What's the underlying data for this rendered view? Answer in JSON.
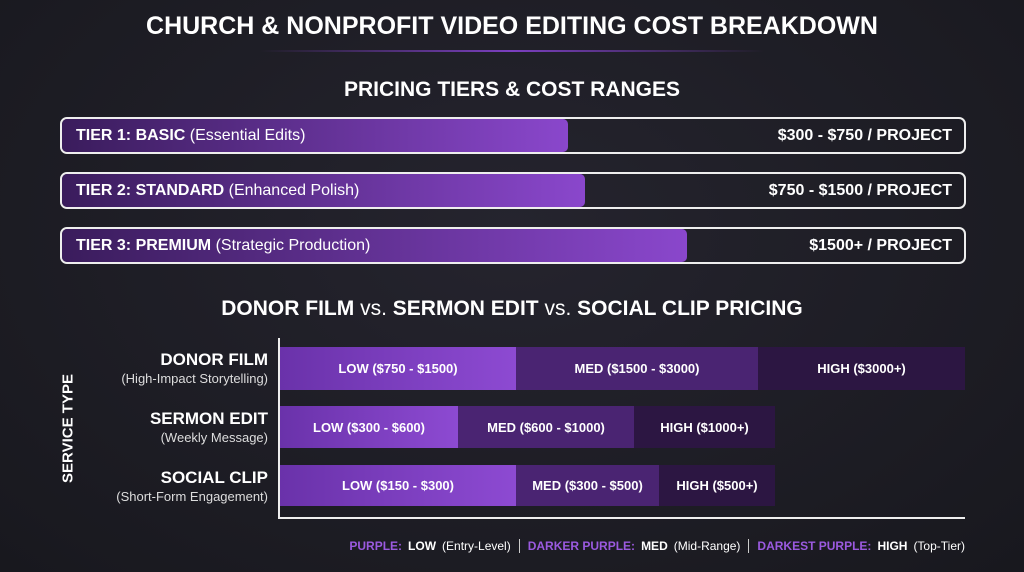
{
  "title": "CHURCH & NONPROFIT VIDEO EDITING COST BREAKDOWN",
  "tiers_section": {
    "title": "PRICING TIERS & COST RANGES",
    "tiers": [
      {
        "name": "TIER 1: BASIC",
        "note": "(Essential Edits)",
        "price": "$300 - $750 / PROJECT"
      },
      {
        "name": "TIER 2: STANDARD",
        "note": "(Enhanced Polish)",
        "price": "$750 - $1500 / PROJECT"
      },
      {
        "name": "TIER 3: PREMIUM",
        "note": "(Strategic Production)",
        "price": "$1500+ / PROJECT"
      }
    ]
  },
  "comparison": {
    "title_parts": [
      "DONOR FILM",
      "vs.",
      "SERMON EDIT",
      "vs.",
      "SOCIAL CLIP PRICING"
    ],
    "axis_label": "SERVICE TYPE",
    "services": [
      {
        "name": "DONOR FILM",
        "sub": "(High-Impact Storytelling)",
        "segments": [
          "LOW ($750 - $1500)",
          "MED ($1500 - $3000)",
          "HIGH ($3000+)"
        ]
      },
      {
        "name": "SERMON EDIT",
        "sub": "(Weekly Message)",
        "segments": [
          "LOW ($300 - $600)",
          "MED ($600 - $1000)",
          "HIGH ($1000+)"
        ]
      },
      {
        "name": "SOCIAL CLIP",
        "sub": "(Short-Form Engagement)",
        "segments": [
          "LOW ($150 - $300)",
          "MED ($300 - $500)",
          "HIGH ($500+)"
        ]
      }
    ],
    "legend": [
      {
        "key": "PURPLE:",
        "level": "LOW",
        "note": "(Entry-Level)"
      },
      {
        "key": "DARKER PURPLE:",
        "level": "MED",
        "note": "(Mid-Range)"
      },
      {
        "key": "DARKEST PURPLE:",
        "level": "HIGH",
        "note": "(Top-Tier)"
      }
    ]
  }
}
